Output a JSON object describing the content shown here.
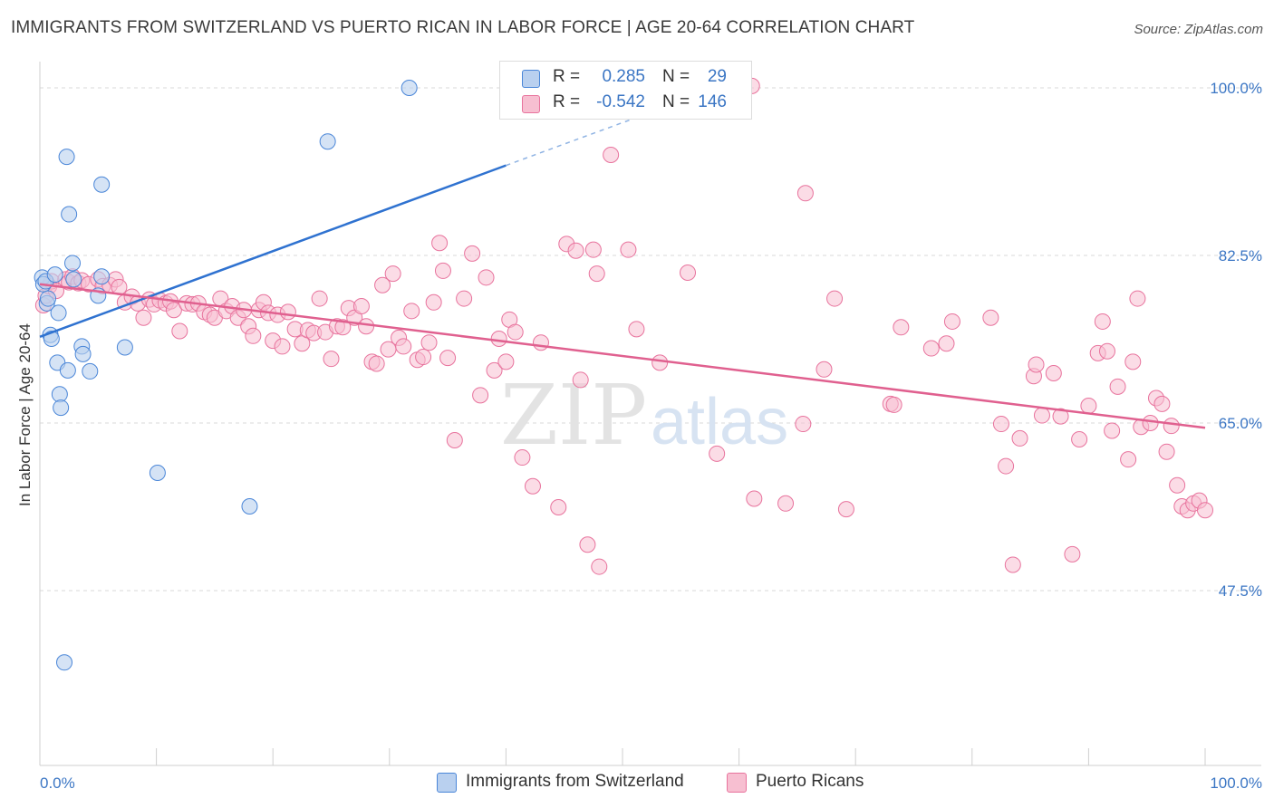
{
  "title": "IMMIGRANTS FROM SWITZERLAND VS PUERTO RICAN IN LABOR FORCE | AGE 20-64 CORRELATION CHART",
  "source": "Source: ZipAtlas.com",
  "watermark": {
    "zip": "ZIP",
    "atlas": "atlas"
  },
  "colors": {
    "blue": "#4a86d8",
    "blue_fill": "#b9d0ef",
    "pink": "#e8739d",
    "pink_fill": "#f7bfd1",
    "axis_text": "#3b76c4",
    "grid": "#d9d9d9"
  },
  "legend": {
    "rows": [
      {
        "r_label": "R =",
        "r_value": "0.285",
        "n_label": "N =",
        "n_value": "29"
      },
      {
        "r_label": "R =",
        "r_value": "-0.542",
        "n_label": "N =",
        "n_value": "146"
      }
    ]
  },
  "bottom_legend": [
    "Immigrants from Switzerland",
    "Puerto Ricans"
  ],
  "chart_data": {
    "type": "scatter",
    "title": "IMMIGRANTS FROM SWITZERLAND VS PUERTO RICAN IN LABOR FORCE | AGE 20-64 CORRELATION CHART",
    "xlabel": "",
    "ylabel": "In Labor Force | Age 20-64",
    "xlim": [
      0,
      100
    ],
    "ylim": [
      31,
      102
    ],
    "x_tick_labels": [
      "0.0%",
      "100.0%"
    ],
    "y_ticks": [
      47.5,
      65.0,
      82.5,
      100.0
    ],
    "y_tick_labels": [
      "47.5%",
      "65.0%",
      "82.5%",
      "100.0%"
    ],
    "grid": true,
    "legend_position": "top-center",
    "series": [
      {
        "name": "Immigrants from Switzerland",
        "color": "#4a86d8",
        "trend": {
          "x": [
            0,
            40
          ],
          "y": [
            74.0,
            91.9
          ],
          "dashed_to": [
            55,
            98.6
          ]
        },
        "points": [
          [
            0.2,
            80.2
          ],
          [
            0.3,
            79.5
          ],
          [
            0.5,
            79.8
          ],
          [
            0.6,
            77.5
          ],
          [
            0.7,
            78.0
          ],
          [
            0.9,
            74.2
          ],
          [
            1.0,
            73.8
          ],
          [
            1.3,
            80.5
          ],
          [
            1.6,
            76.5
          ],
          [
            1.7,
            68.0
          ],
          [
            1.8,
            66.6
          ],
          [
            1.5,
            71.3
          ],
          [
            2.4,
            70.5
          ],
          [
            2.3,
            92.8
          ],
          [
            2.5,
            86.8
          ],
          [
            2.8,
            81.7
          ],
          [
            2.9,
            80.0
          ],
          [
            3.6,
            73.0
          ],
          [
            3.7,
            72.2
          ],
          [
            4.3,
            70.4
          ],
          [
            5.0,
            78.3
          ],
          [
            5.3,
            80.3
          ],
          [
            5.3,
            89.9
          ],
          [
            7.3,
            72.9
          ],
          [
            10.1,
            59.8
          ],
          [
            18.0,
            56.3
          ],
          [
            24.7,
            94.4
          ],
          [
            31.7,
            100.0
          ],
          [
            2.1,
            40.0
          ]
        ]
      },
      {
        "name": "Puerto Ricans",
        "color": "#e8739d",
        "trend": {
          "x": [
            0,
            100
          ],
          "y": [
            79.5,
            64.5
          ]
        },
        "points": [
          [
            0.3,
            77.3
          ],
          [
            0.5,
            78.3
          ],
          [
            0.8,
            79.3
          ],
          [
            1.0,
            79.8
          ],
          [
            1.4,
            78.8
          ],
          [
            2.2,
            80.0
          ],
          [
            2.5,
            79.7
          ],
          [
            2.8,
            80.3
          ],
          [
            3.3,
            79.6
          ],
          [
            3.6,
            79.9
          ],
          [
            4.2,
            79.5
          ],
          [
            5.0,
            80.0
          ],
          [
            5.4,
            79.3
          ],
          [
            6.0,
            79.4
          ],
          [
            6.5,
            80.0
          ],
          [
            6.8,
            79.2
          ],
          [
            7.3,
            77.6
          ],
          [
            7.9,
            78.2
          ],
          [
            8.4,
            77.5
          ],
          [
            8.9,
            76.0
          ],
          [
            9.4,
            77.9
          ],
          [
            9.8,
            77.4
          ],
          [
            10.3,
            77.8
          ],
          [
            10.8,
            77.5
          ],
          [
            11.2,
            77.7
          ],
          [
            11.5,
            76.8
          ],
          [
            12.0,
            74.6
          ],
          [
            12.6,
            77.5
          ],
          [
            13.1,
            77.4
          ],
          [
            13.6,
            77.5
          ],
          [
            14.1,
            76.6
          ],
          [
            14.6,
            76.3
          ],
          [
            15.0,
            76.0
          ],
          [
            15.5,
            78.0
          ],
          [
            16.0,
            76.7
          ],
          [
            16.5,
            77.2
          ],
          [
            17.0,
            76.0
          ],
          [
            17.5,
            76.8
          ],
          [
            17.9,
            75.1
          ],
          [
            18.3,
            74.1
          ],
          [
            18.8,
            76.8
          ],
          [
            19.2,
            77.6
          ],
          [
            19.6,
            76.5
          ],
          [
            20.0,
            73.6
          ],
          [
            20.4,
            76.3
          ],
          [
            20.8,
            73.0
          ],
          [
            21.3,
            76.6
          ],
          [
            21.9,
            74.8
          ],
          [
            22.5,
            73.3
          ],
          [
            23.0,
            74.7
          ],
          [
            23.5,
            74.4
          ],
          [
            24.0,
            78.0
          ],
          [
            24.5,
            74.5
          ],
          [
            25.0,
            71.7
          ],
          [
            25.5,
            75.1
          ],
          [
            26.0,
            75.0
          ],
          [
            26.5,
            77.0
          ],
          [
            27.0,
            76.0
          ],
          [
            27.6,
            77.2
          ],
          [
            28.0,
            75.1
          ],
          [
            28.5,
            71.4
          ],
          [
            28.9,
            71.2
          ],
          [
            29.4,
            79.4
          ],
          [
            29.9,
            72.7
          ],
          [
            30.3,
            80.6
          ],
          [
            30.8,
            73.9
          ],
          [
            31.2,
            73.0
          ],
          [
            31.9,
            76.7
          ],
          [
            32.4,
            71.6
          ],
          [
            32.9,
            71.9
          ],
          [
            33.4,
            73.4
          ],
          [
            33.8,
            77.6
          ],
          [
            34.3,
            83.8
          ],
          [
            34.6,
            80.9
          ],
          [
            35.0,
            71.8
          ],
          [
            35.6,
            63.2
          ],
          [
            36.4,
            78.0
          ],
          [
            37.1,
            82.7
          ],
          [
            37.8,
            67.9
          ],
          [
            38.3,
            80.2
          ],
          [
            39.0,
            70.5
          ],
          [
            39.4,
            73.8
          ],
          [
            40.0,
            71.4
          ],
          [
            40.3,
            75.8
          ],
          [
            40.8,
            74.5
          ],
          [
            41.4,
            61.4
          ],
          [
            42.3,
            58.4
          ],
          [
            43.0,
            73.4
          ],
          [
            44.5,
            56.2
          ],
          [
            45.2,
            83.7
          ],
          [
            46.0,
            83.0
          ],
          [
            46.4,
            69.5
          ],
          [
            47.0,
            52.3
          ],
          [
            47.5,
            83.1
          ],
          [
            47.8,
            80.6
          ],
          [
            48.0,
            50.0
          ],
          [
            49.0,
            93.0
          ],
          [
            50.5,
            83.1
          ],
          [
            51.2,
            74.8
          ],
          [
            53.2,
            71.3
          ],
          [
            55.6,
            80.7
          ],
          [
            58.1,
            61.8
          ],
          [
            61.1,
            100.2
          ],
          [
            61.3,
            57.1
          ],
          [
            64.0,
            56.6
          ],
          [
            65.5,
            64.9
          ],
          [
            65.7,
            89.0
          ],
          [
            67.3,
            70.6
          ],
          [
            68.2,
            78.0
          ],
          [
            69.2,
            56.0
          ],
          [
            73.0,
            67.0
          ],
          [
            73.3,
            66.9
          ],
          [
            73.9,
            75.0
          ],
          [
            76.5,
            72.8
          ],
          [
            77.8,
            73.3
          ],
          [
            78.3,
            75.6
          ],
          [
            81.6,
            76.0
          ],
          [
            82.5,
            64.9
          ],
          [
            82.9,
            60.5
          ],
          [
            83.5,
            50.2
          ],
          [
            84.1,
            63.4
          ],
          [
            85.3,
            69.9
          ],
          [
            85.5,
            71.1
          ],
          [
            86.0,
            65.8
          ],
          [
            87.0,
            70.2
          ],
          [
            87.6,
            65.7
          ],
          [
            88.6,
            51.3
          ],
          [
            89.2,
            63.3
          ],
          [
            90.0,
            66.8
          ],
          [
            90.8,
            72.3
          ],
          [
            91.2,
            75.6
          ],
          [
            91.6,
            72.5
          ],
          [
            92.0,
            64.2
          ],
          [
            92.5,
            68.8
          ],
          [
            93.4,
            61.2
          ],
          [
            93.8,
            71.4
          ],
          [
            94.2,
            78.0
          ],
          [
            94.5,
            64.6
          ],
          [
            95.3,
            65.0
          ],
          [
            95.8,
            67.6
          ],
          [
            96.3,
            67.0
          ],
          [
            96.7,
            62.0
          ],
          [
            97.1,
            64.7
          ],
          [
            97.6,
            58.5
          ],
          [
            98.0,
            56.3
          ],
          [
            98.5,
            55.9
          ],
          [
            99.0,
            56.6
          ],
          [
            99.5,
            56.9
          ],
          [
            100.0,
            55.9
          ]
        ]
      }
    ]
  }
}
